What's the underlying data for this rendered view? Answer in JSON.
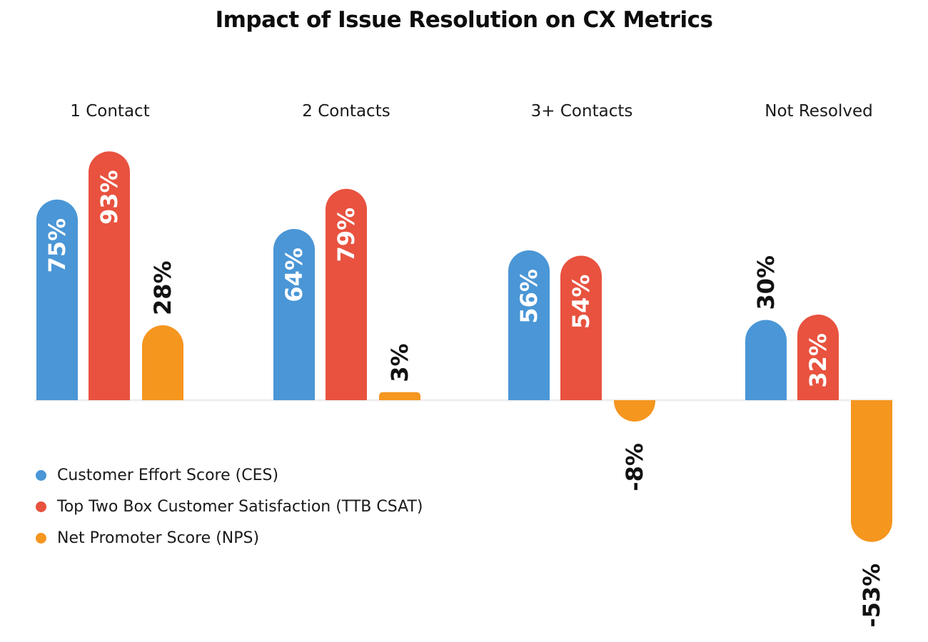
{
  "chart_data": {
    "type": "bar",
    "title": "Impact of Issue Resolution on CX Metrics",
    "categories": [
      "1 Contact",
      "2 Contacts",
      "3+ Contacts",
      "Not Resolved"
    ],
    "series": [
      {
        "name": "Customer Effort Score (CES)",
        "values": [
          75,
          64,
          56,
          30
        ],
        "labels": [
          "75%",
          "64%",
          "56%",
          "30%"
        ],
        "color": "#4a96d6"
      },
      {
        "name": "Top Two Box Customer Satisfaction (TTB CSAT)",
        "values": [
          93,
          79,
          54,
          32
        ],
        "labels": [
          "93%",
          "79%",
          "54%",
          "32%"
        ],
        "color": "#e8523f"
      },
      {
        "name": "Net Promoter Score (NPS)",
        "values": [
          28,
          3,
          -8,
          -53
        ],
        "labels": [
          "28%",
          "3%",
          "-8%",
          "-53%"
        ],
        "color": "#f5961f"
      }
    ],
    "ylim": [
      -53,
      93
    ],
    "grid": false,
    "legend_position": "bottom-left",
    "baseline_color": "#eeeeee",
    "inside_label_color": "#ffffff",
    "outside_label_color": "#111111"
  }
}
